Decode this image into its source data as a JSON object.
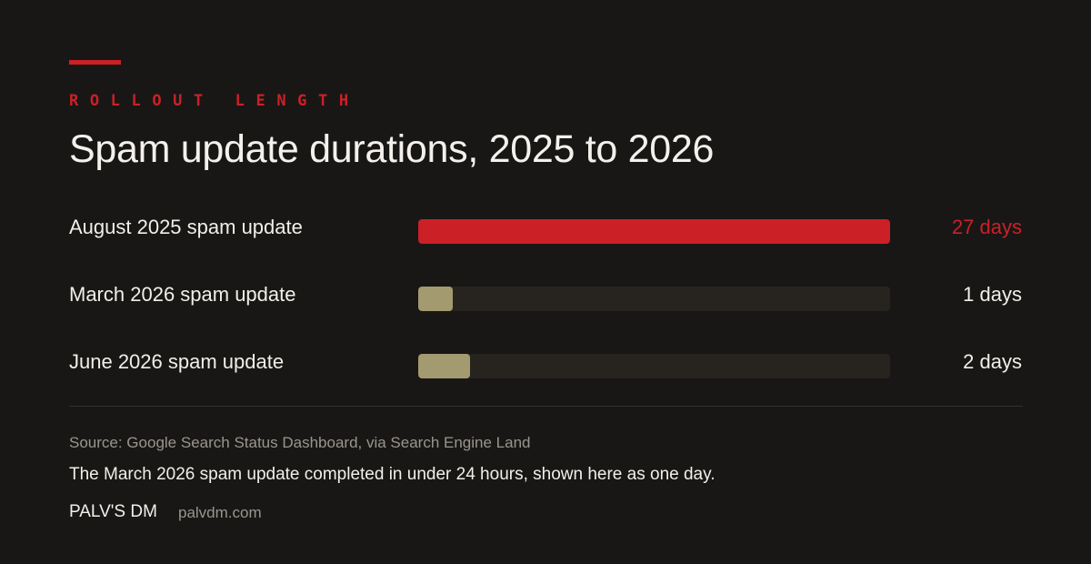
{
  "header": {
    "eyebrow": "ROLLOUT LENGTH",
    "title": "Spam update durations, 2025 to 2026"
  },
  "colors": {
    "background": "#181716",
    "accent": "#cc2027",
    "bar_muted": "#a39a6f",
    "track": "#27241f",
    "text": "#f2efe9",
    "text_muted": "#9a958d"
  },
  "chart_data": {
    "type": "bar",
    "orientation": "horizontal",
    "title": "Spam update durations, 2025 to 2026",
    "categories": [
      "August 2025 spam update",
      "March 2026 spam update",
      "June 2026 spam update"
    ],
    "values": [
      27,
      1,
      2
    ],
    "value_labels": [
      "27 days",
      "1 days",
      "2 days"
    ],
    "unit": "days",
    "xlim": [
      0,
      27
    ],
    "grid": false,
    "highlight_index": 0
  },
  "footer": {
    "source": "Source: Google Search Status Dashboard, via Search Engine Land",
    "note": "The March 2026 spam update completed in under 24 hours, shown here as one day.",
    "brand": "PALV'S DM",
    "url": "palvdm.com"
  }
}
